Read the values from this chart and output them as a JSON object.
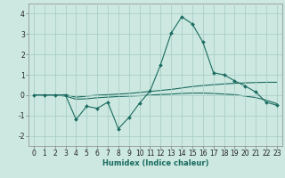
{
  "xlabel": "Humidex (Indice chaleur)",
  "background_color": "#cce8e0",
  "grid_color": "#aacfc8",
  "line_color": "#1a6b60",
  "x_values": [
    0,
    1,
    2,
    3,
    4,
    5,
    6,
    7,
    8,
    9,
    10,
    11,
    12,
    13,
    14,
    15,
    16,
    17,
    18,
    19,
    20,
    21,
    22,
    23
  ],
  "line1_y": [
    0.0,
    0.0,
    0.0,
    0.0,
    -1.2,
    -0.55,
    -0.65,
    -0.35,
    -1.65,
    -1.1,
    -0.4,
    0.2,
    1.5,
    3.05,
    3.85,
    3.5,
    2.6,
    1.1,
    1.0,
    0.7,
    0.45,
    0.15,
    -0.35,
    -0.5
  ],
  "line2_y": [
    0.0,
    0.0,
    0.0,
    0.02,
    -0.1,
    -0.05,
    0.0,
    0.02,
    0.05,
    0.08,
    0.13,
    0.18,
    0.23,
    0.28,
    0.35,
    0.42,
    0.47,
    0.51,
    0.55,
    0.58,
    0.6,
    0.62,
    0.63,
    0.63
  ],
  "line3_y": [
    0.0,
    0.0,
    0.0,
    -0.05,
    -0.2,
    -0.18,
    -0.13,
    -0.1,
    -0.07,
    -0.05,
    -0.03,
    0.0,
    0.03,
    0.05,
    0.08,
    0.1,
    0.1,
    0.08,
    0.05,
    0.02,
    -0.05,
    -0.12,
    -0.25,
    -0.42
  ],
  "xlim": [
    -0.5,
    23.5
  ],
  "ylim": [
    -2.5,
    4.5
  ],
  "yticks": [
    -2,
    -1,
    0,
    1,
    2,
    3,
    4
  ],
  "xticks": [
    0,
    1,
    2,
    3,
    4,
    5,
    6,
    7,
    8,
    9,
    10,
    11,
    12,
    13,
    14,
    15,
    16,
    17,
    18,
    19,
    20,
    21,
    22,
    23
  ],
  "xlabel_fontsize": 6.0,
  "tick_fontsize": 5.5
}
